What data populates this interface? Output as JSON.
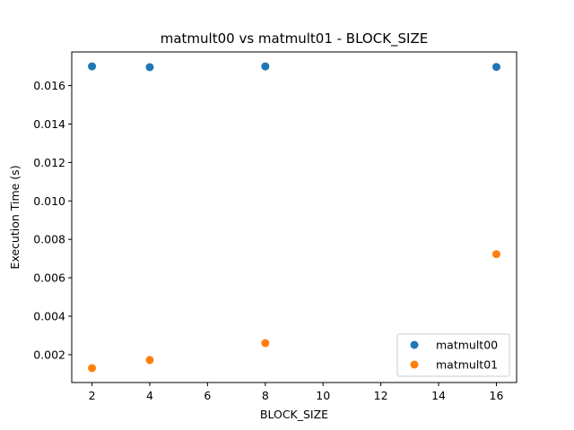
{
  "chart_data": {
    "type": "scatter",
    "title": "matmult00 vs matmult01 - BLOCK_SIZE",
    "xlabel": "BLOCK_SIZE",
    "ylabel": "Execution Time (s)",
    "xlim": [
      1.3,
      16.7
    ],
    "ylim": [
      0.00055,
      0.01775
    ],
    "x_ticks": [
      2,
      4,
      6,
      8,
      10,
      12,
      14,
      16
    ],
    "x_tick_labels": [
      "2",
      "4",
      "6",
      "8",
      "10",
      "12",
      "14",
      "16"
    ],
    "y_ticks": [
      0.002,
      0.004,
      0.006,
      0.008,
      0.01,
      0.012,
      0.014,
      0.016
    ],
    "y_tick_labels": [
      "0.002",
      "0.004",
      "0.006",
      "0.008",
      "0.010",
      "0.012",
      "0.014",
      "0.016"
    ],
    "grid": false,
    "legend_position": "lower-right",
    "series": [
      {
        "name": "matmult00",
        "color": "#1f77b4",
        "x": [
          2,
          4,
          8,
          16
        ],
        "y": [
          0.017,
          0.01696,
          0.017,
          0.01697
        ]
      },
      {
        "name": "matmult01",
        "color": "#ff7f0e",
        "x": [
          2,
          4,
          8,
          16
        ],
        "y": [
          0.0013,
          0.00172,
          0.0026,
          0.00723
        ]
      }
    ]
  }
}
